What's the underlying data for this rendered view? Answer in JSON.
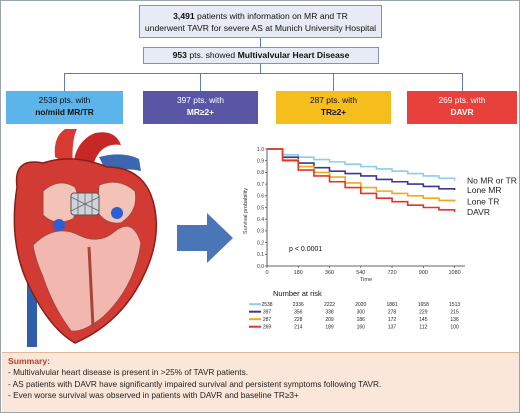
{
  "top_box": {
    "count": "3,491",
    "line1_rest": " patients with information on MR and TR",
    "line2": "underwent TAVR for severe AS at Munich University Hospital"
  },
  "mvhd_box": {
    "count": "953",
    "pre": " pts. showed ",
    "bold": "Multivalvular Heart Disease"
  },
  "categories": {
    "none": {
      "line1": "2538 pts. with",
      "line2": "no/mild MR/TR",
      "color": "#5bb5ea"
    },
    "mr": {
      "line1": "397 pts. with",
      "line2": "MR≥2+",
      "color": "#5a56a6"
    },
    "tr": {
      "line1": "287 pts. with",
      "line2": "TR≥2+",
      "color": "#f5be1c"
    },
    "davr": {
      "line1": "269 pts. with",
      "line2": "DAVR",
      "color": "#e8413c"
    }
  },
  "summary": {
    "title": "Summary:",
    "items": [
      "-   Multivalvular heart disease is present in >25% of TAVR patients.",
      "-   AS patients with DAVR have significantly impaired survival and persistent symptoms following TAVR.",
      "-   Even worse survival was observed in patients with DAVR and baseline TR≥3+"
    ]
  },
  "chart_data": {
    "type": "line",
    "xlabel": "Time",
    "ylabel": "Survival probability",
    "xlim": [
      0,
      1140
    ],
    "ylim": [
      0,
      1.0
    ],
    "x_ticks": [
      0,
      180,
      360,
      540,
      720,
      900,
      1080
    ],
    "y_ticks": [
      "0.0",
      "0.1",
      "0.2",
      "0.3",
      "0.4",
      "0.5",
      "0.6",
      "0.7",
      "0.8",
      "0.9",
      "1.0"
    ],
    "p_value": "p < 0.0001",
    "series": [
      {
        "name": "No MR or TR",
        "color": "#8fcde6",
        "x": [
          0,
          90,
          180,
          270,
          360,
          450,
          540,
          630,
          720,
          810,
          900,
          990,
          1080
        ],
        "y": [
          1.0,
          0.95,
          0.93,
          0.91,
          0.89,
          0.87,
          0.85,
          0.83,
          0.81,
          0.79,
          0.77,
          0.75,
          0.73
        ]
      },
      {
        "name": "Lone MR",
        "color": "#3b3a8c",
        "x": [
          0,
          90,
          180,
          270,
          360,
          450,
          540,
          630,
          720,
          810,
          900,
          990,
          1080
        ],
        "y": [
          1.0,
          0.93,
          0.88,
          0.84,
          0.81,
          0.79,
          0.77,
          0.74,
          0.72,
          0.7,
          0.68,
          0.66,
          0.65
        ]
      },
      {
        "name": "Lone TR",
        "color": "#f0a81c",
        "x": [
          0,
          90,
          180,
          270,
          360,
          450,
          540,
          630,
          720,
          810,
          900,
          990,
          1080
        ],
        "y": [
          1.0,
          0.91,
          0.85,
          0.8,
          0.76,
          0.71,
          0.67,
          0.64,
          0.62,
          0.6,
          0.58,
          0.56,
          0.55
        ]
      },
      {
        "name": "DAVR",
        "color": "#e0352b",
        "x": [
          0,
          90,
          180,
          270,
          360,
          450,
          540,
          630,
          720,
          810,
          900,
          990,
          1080
        ],
        "y": [
          1.0,
          0.9,
          0.82,
          0.77,
          0.72,
          0.67,
          0.62,
          0.58,
          0.55,
          0.52,
          0.5,
          0.48,
          0.46
        ]
      }
    ],
    "risk_table": {
      "title": "Number at risk",
      "rows": [
        {
          "color": "#8fcde6",
          "values": [
            "2538",
            "2336",
            "2222",
            "2020",
            "1881",
            "1658",
            "1513"
          ]
        },
        {
          "color": "#3b3a8c",
          "values": [
            "397",
            "356",
            "338",
            "300",
            "278",
            "229",
            "215"
          ]
        },
        {
          "color": "#f0a81c",
          "values": [
            "287",
            "228",
            "209",
            "186",
            "172",
            "145",
            "136"
          ]
        },
        {
          "color": "#e0352b",
          "values": [
            "269",
            "214",
            "189",
            "160",
            "137",
            "112",
            "100"
          ]
        }
      ]
    }
  },
  "colors": {
    "connector": "#5b7fb8",
    "arrow": "#4a76b8",
    "box_fill": "#e6ebf5"
  }
}
